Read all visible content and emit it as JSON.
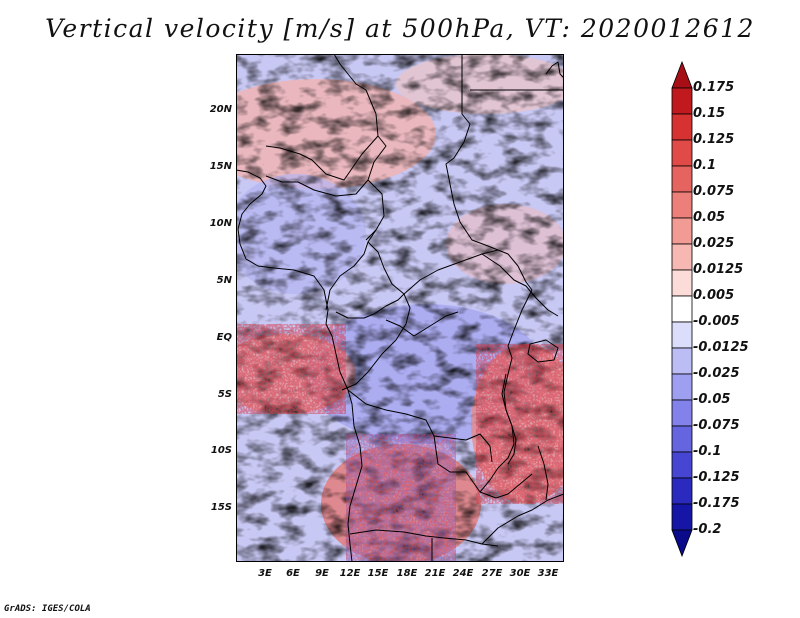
{
  "title": "Vertical velocity [m/s] at 500hPa, VT: 2020012612",
  "credit": "GrADS: IGES/COLA",
  "map": {
    "lat_labels": [
      "20N",
      "15N",
      "10N",
      "5N",
      "EQ",
      "5S",
      "10S",
      "15S"
    ],
    "lon_labels": [
      "3E",
      "6E",
      "9E",
      "12E",
      "15E",
      "18E",
      "21E",
      "24E",
      "27E",
      "30E",
      "33E"
    ]
  },
  "colorbar": {
    "labels": [
      "0.175",
      "0.15",
      "0.125",
      "0.1",
      "0.075",
      "0.05",
      "0.025",
      "0.0125",
      "0.005",
      "-0.005",
      "-0.0125",
      "-0.025",
      "-0.05",
      "-0.075",
      "-0.1",
      "-0.125",
      "-0.175",
      "-0.2"
    ],
    "colors": [
      "#a50f15",
      "#c0191e",
      "#d63232",
      "#e04a47",
      "#e6645f",
      "#ec7f79",
      "#f29a94",
      "#f7b8b3",
      "#fcdcd9",
      "#ffffff",
      "#dcdcfb",
      "#bdbdf6",
      "#9f9ff2",
      "#8282ea",
      "#6565e0",
      "#4646d2",
      "#2a2abf",
      "#1616a6",
      "#0a0a8a"
    ]
  }
}
